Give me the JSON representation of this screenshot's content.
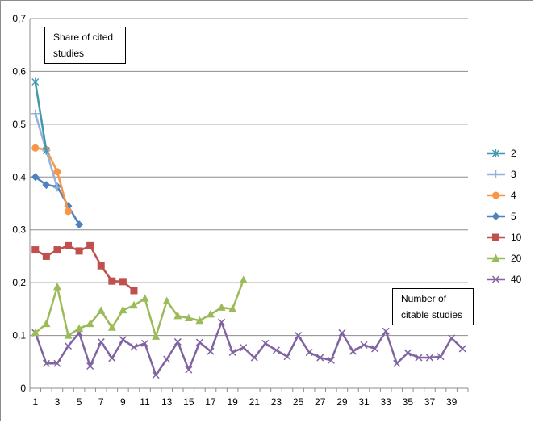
{
  "chart_data": {
    "type": "line",
    "title": "",
    "xlabel": "",
    "ylabel": "",
    "ylim": [
      0,
      0.7
    ],
    "yticks": [
      "0",
      "0,1",
      "0,2",
      "0,3",
      "0,4",
      "0,5",
      "0,6",
      "0,7"
    ],
    "xlim": [
      1,
      40
    ],
    "xticks": [
      "1",
      "3",
      "5",
      "7",
      "9",
      "11",
      "13",
      "15",
      "17",
      "19",
      "21",
      "23",
      "25",
      "27",
      "29",
      "31",
      "33",
      "35",
      "37",
      "39"
    ],
    "grid": "horizontal",
    "legend": "right",
    "annotations": [
      {
        "id": "y-annotation",
        "lines": [
          "Share of cited",
          "studies"
        ]
      },
      {
        "id": "x-annotation",
        "lines": [
          "Number of",
          "citable studies"
        ]
      }
    ],
    "series": [
      {
        "name": "2",
        "color": "#4198AF",
        "marker": "star",
        "values": [
          0.58,
          0.45
        ]
      },
      {
        "name": "3",
        "color": "#95B3D7",
        "marker": "plus",
        "values": [
          0.52,
          0.45,
          0.38
        ]
      },
      {
        "name": "4",
        "color": "#F79646",
        "marker": "circle",
        "values": [
          0.455,
          0.452,
          0.41,
          0.335
        ]
      },
      {
        "name": "5",
        "color": "#4F81BD",
        "marker": "diamond",
        "values": [
          0.4,
          0.385,
          0.382,
          0.345,
          0.31
        ]
      },
      {
        "name": "10",
        "color": "#C0504D",
        "marker": "square",
        "values": [
          0.262,
          0.25,
          0.262,
          0.27,
          0.26,
          0.27,
          0.232,
          0.203,
          0.202,
          0.185
        ]
      },
      {
        "name": "20",
        "color": "#9BBB59",
        "marker": "triangle",
        "values": [
          0.105,
          0.122,
          0.192,
          0.1,
          0.113,
          0.122,
          0.147,
          0.115,
          0.148,
          0.157,
          0.17,
          0.098,
          0.165,
          0.137,
          0.133,
          0.128,
          0.14,
          0.153,
          0.15,
          0.205
        ]
      },
      {
        "name": "40",
        "color": "#8064A2",
        "marker": "x",
        "values": [
          0.105,
          0.047,
          0.047,
          0.08,
          0.105,
          0.042,
          0.088,
          0.057,
          0.092,
          0.078,
          0.085,
          0.025,
          0.055,
          0.088,
          0.035,
          0.087,
          0.07,
          0.125,
          0.068,
          0.077,
          0.058,
          0.085,
          0.072,
          0.06,
          0.1,
          0.068,
          0.058,
          0.053,
          0.105,
          0.07,
          0.082,
          0.075,
          0.108,
          0.047,
          0.067,
          0.058,
          0.058,
          0.06,
          0.095,
          0.075
        ]
      }
    ]
  }
}
